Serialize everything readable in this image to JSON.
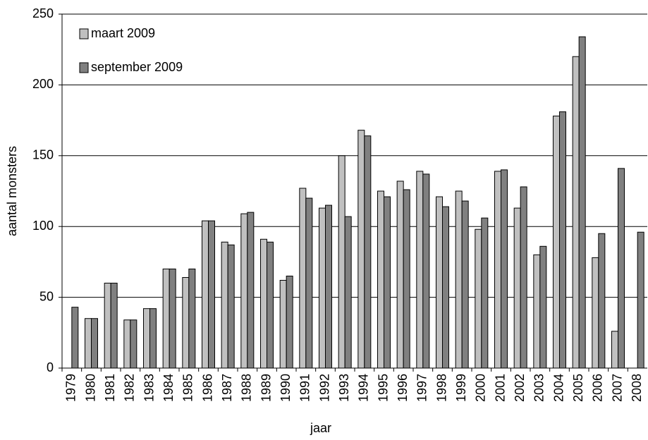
{
  "chart_data": {
    "type": "bar",
    "x_label": "jaar",
    "y_label": "aantal monsters",
    "categories": [
      "1979",
      "1980",
      "1981",
      "1982",
      "1983",
      "1984",
      "1985",
      "1986",
      "1987",
      "1988",
      "1989",
      "1990",
      "1991",
      "1992",
      "1993",
      "1994",
      "1995",
      "1996",
      "1997",
      "1998",
      "1999",
      "2000",
      "2001",
      "2002",
      "2003",
      "2004",
      "2005",
      "2006",
      "2007",
      "2008"
    ],
    "series": [
      {
        "name": "maart 2009",
        "color": "#c0c0c0",
        "values": [
          null,
          35,
          60,
          34,
          42,
          70,
          64,
          104,
          89,
          109,
          91,
          62,
          127,
          113,
          150,
          168,
          125,
          132,
          139,
          121,
          125,
          98,
          139,
          113,
          80,
          178,
          220,
          78,
          26,
          null
        ]
      },
      {
        "name": "september 2009",
        "color": "#808080",
        "values": [
          43,
          35,
          60,
          34,
          42,
          70,
          70,
          104,
          87,
          110,
          89,
          65,
          120,
          115,
          107,
          164,
          121,
          126,
          137,
          114,
          118,
          106,
          140,
          128,
          86,
          181,
          234,
          95,
          141,
          96
        ]
      }
    ],
    "ylim": [
      0,
      250
    ],
    "yticks": [
      0,
      50,
      100,
      150,
      200,
      250
    ],
    "grid": true,
    "legend": "top-left"
  }
}
